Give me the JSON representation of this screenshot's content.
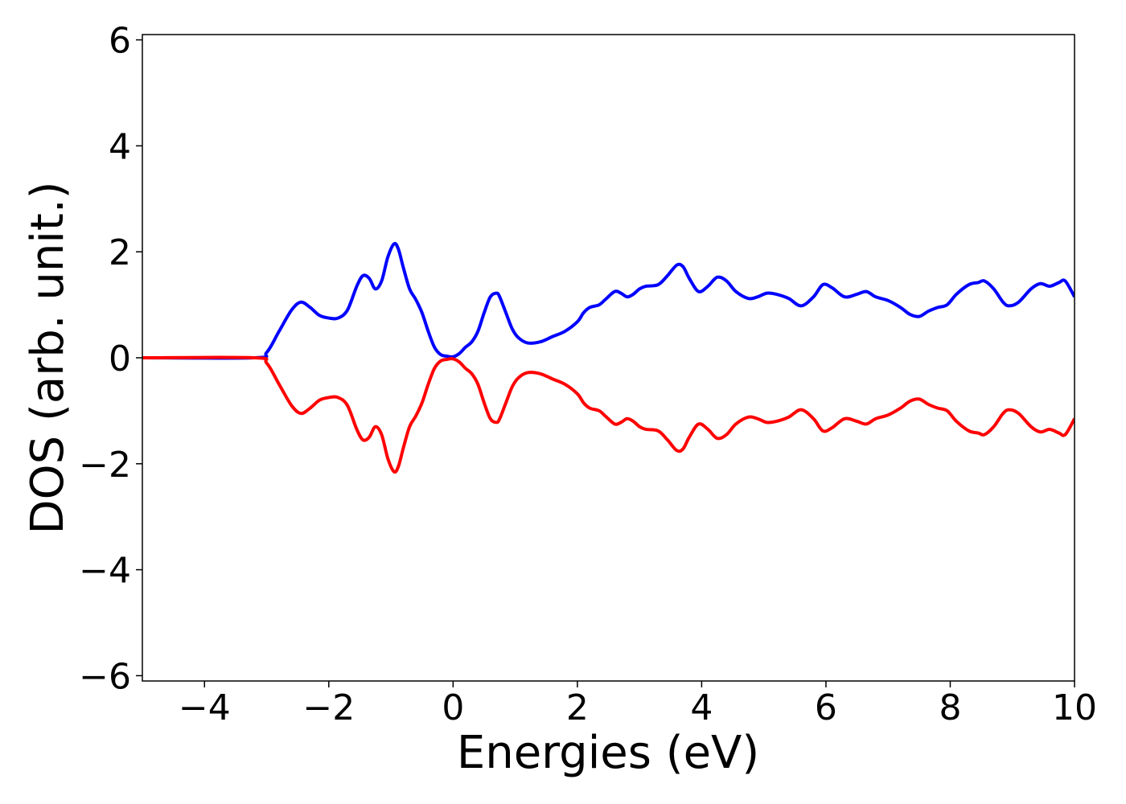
{
  "chart_data": {
    "type": "line",
    "title": "",
    "xlabel": "Energies (eV)",
    "ylabel": "DOS (arb. unit.)",
    "xlim": [
      -5,
      10
    ],
    "ylim": [
      -6.1,
      6.1
    ],
    "xticks": [
      -4,
      -2,
      0,
      2,
      4,
      6,
      8,
      10
    ],
    "xtick_labels": [
      "−4",
      "−2",
      "0",
      "2",
      "4",
      "6",
      "8",
      "10"
    ],
    "yticks": [
      -6,
      -4,
      -2,
      0,
      2,
      4,
      6
    ],
    "ytick_labels": [
      "−6",
      "−4",
      "−2",
      "0",
      "2",
      "4",
      "6"
    ],
    "grid": false,
    "legend": "none",
    "series": [
      {
        "color": "#0000ff",
        "x": [
          -5,
          -3.2,
          -3.0,
          -2.8,
          -2.6,
          -2.45,
          -2.3,
          -2.15,
          -2.0,
          -1.85,
          -1.7,
          -1.55,
          -1.45,
          -1.35,
          -1.25,
          -1.15,
          -1.05,
          -0.95,
          -0.88,
          -0.8,
          -0.7,
          -0.6,
          -0.5,
          -0.4,
          -0.3,
          -0.2,
          -0.1,
          0.0,
          0.1,
          0.2,
          0.3,
          0.4,
          0.5,
          0.6,
          0.7,
          0.75,
          0.85,
          0.95,
          1.05,
          1.2,
          1.4,
          1.6,
          1.8,
          2.0,
          2.1,
          2.2,
          2.35,
          2.45,
          2.6,
          2.7,
          2.8,
          2.9,
          3.0,
          3.1,
          3.3,
          3.45,
          3.6,
          3.7,
          3.8,
          3.95,
          4.1,
          4.25,
          4.4,
          4.55,
          4.75,
          4.9,
          5.05,
          5.2,
          5.4,
          5.6,
          5.8,
          5.95,
          6.1,
          6.3,
          6.5,
          6.65,
          6.8,
          7.0,
          7.2,
          7.35,
          7.5,
          7.65,
          7.8,
          7.95,
          8.1,
          8.3,
          8.45,
          8.55,
          8.7,
          8.85,
          8.95,
          9.1,
          9.3,
          9.45,
          9.6,
          9.75,
          9.85,
          10.0
        ],
        "y": [
          0,
          0.0,
          0.1,
          0.5,
          0.9,
          1.05,
          0.95,
          0.8,
          0.75,
          0.75,
          0.9,
          1.35,
          1.55,
          1.5,
          1.3,
          1.45,
          1.9,
          2.15,
          2.05,
          1.7,
          1.3,
          1.1,
          0.85,
          0.5,
          0.2,
          0.06,
          0.03,
          0.02,
          0.08,
          0.2,
          0.3,
          0.5,
          0.85,
          1.15,
          1.22,
          1.15,
          0.85,
          0.55,
          0.38,
          0.28,
          0.3,
          0.4,
          0.5,
          0.68,
          0.85,
          0.95,
          1.0,
          1.1,
          1.25,
          1.22,
          1.15,
          1.2,
          1.3,
          1.35,
          1.38,
          1.55,
          1.75,
          1.72,
          1.5,
          1.25,
          1.35,
          1.52,
          1.45,
          1.25,
          1.12,
          1.15,
          1.22,
          1.2,
          1.12,
          0.98,
          1.15,
          1.38,
          1.32,
          1.15,
          1.2,
          1.25,
          1.15,
          1.08,
          0.95,
          0.82,
          0.78,
          0.88,
          0.95,
          1.0,
          1.2,
          1.38,
          1.42,
          1.45,
          1.3,
          1.05,
          0.98,
          1.05,
          1.3,
          1.4,
          1.35,
          1.42,
          1.45,
          1.15
        ]
      },
      {
        "color": "#ff0000",
        "x": [
          -5,
          -3.2,
          -3.0,
          -2.8,
          -2.6,
          -2.45,
          -2.3,
          -2.15,
          -2.0,
          -1.85,
          -1.7,
          -1.55,
          -1.45,
          -1.35,
          -1.25,
          -1.15,
          -1.05,
          -0.95,
          -0.88,
          -0.8,
          -0.7,
          -0.6,
          -0.5,
          -0.4,
          -0.3,
          -0.2,
          -0.1,
          0.0,
          0.1,
          0.2,
          0.3,
          0.4,
          0.5,
          0.6,
          0.7,
          0.75,
          0.85,
          0.95,
          1.05,
          1.2,
          1.4,
          1.6,
          1.8,
          2.0,
          2.1,
          2.2,
          2.35,
          2.45,
          2.6,
          2.7,
          2.8,
          2.9,
          3.0,
          3.1,
          3.3,
          3.45,
          3.6,
          3.7,
          3.8,
          3.95,
          4.1,
          4.25,
          4.4,
          4.55,
          4.75,
          4.9,
          5.05,
          5.2,
          5.4,
          5.6,
          5.8,
          5.95,
          6.1,
          6.3,
          6.5,
          6.65,
          6.8,
          7.0,
          7.2,
          7.35,
          7.5,
          7.65,
          7.8,
          7.95,
          8.1,
          8.3,
          8.45,
          8.55,
          8.7,
          8.85,
          8.95,
          9.1,
          9.3,
          9.45,
          9.6,
          9.75,
          9.85,
          10.0
        ],
        "y": [
          0,
          0.0,
          -0.1,
          -0.5,
          -0.9,
          -1.05,
          -0.95,
          -0.8,
          -0.75,
          -0.75,
          -0.9,
          -1.35,
          -1.55,
          -1.5,
          -1.3,
          -1.45,
          -1.9,
          -2.15,
          -2.05,
          -1.7,
          -1.3,
          -1.1,
          -0.85,
          -0.5,
          -0.2,
          -0.06,
          -0.03,
          -0.02,
          -0.08,
          -0.2,
          -0.3,
          -0.5,
          -0.85,
          -1.15,
          -1.22,
          -1.15,
          -0.85,
          -0.55,
          -0.38,
          -0.28,
          -0.3,
          -0.4,
          -0.5,
          -0.68,
          -0.85,
          -0.95,
          -1.0,
          -1.1,
          -1.25,
          -1.22,
          -1.15,
          -1.2,
          -1.3,
          -1.35,
          -1.38,
          -1.55,
          -1.75,
          -1.72,
          -1.5,
          -1.25,
          -1.35,
          -1.52,
          -1.45,
          -1.25,
          -1.12,
          -1.15,
          -1.22,
          -1.2,
          -1.12,
          -0.98,
          -1.15,
          -1.38,
          -1.32,
          -1.15,
          -1.2,
          -1.25,
          -1.15,
          -1.08,
          -0.95,
          -0.82,
          -0.78,
          -0.88,
          -0.95,
          -1.0,
          -1.2,
          -1.38,
          -1.42,
          -1.45,
          -1.3,
          -1.05,
          -0.98,
          -1.05,
          -1.3,
          -1.4,
          -1.35,
          -1.42,
          -1.45,
          -1.15
        ]
      }
    ]
  }
}
